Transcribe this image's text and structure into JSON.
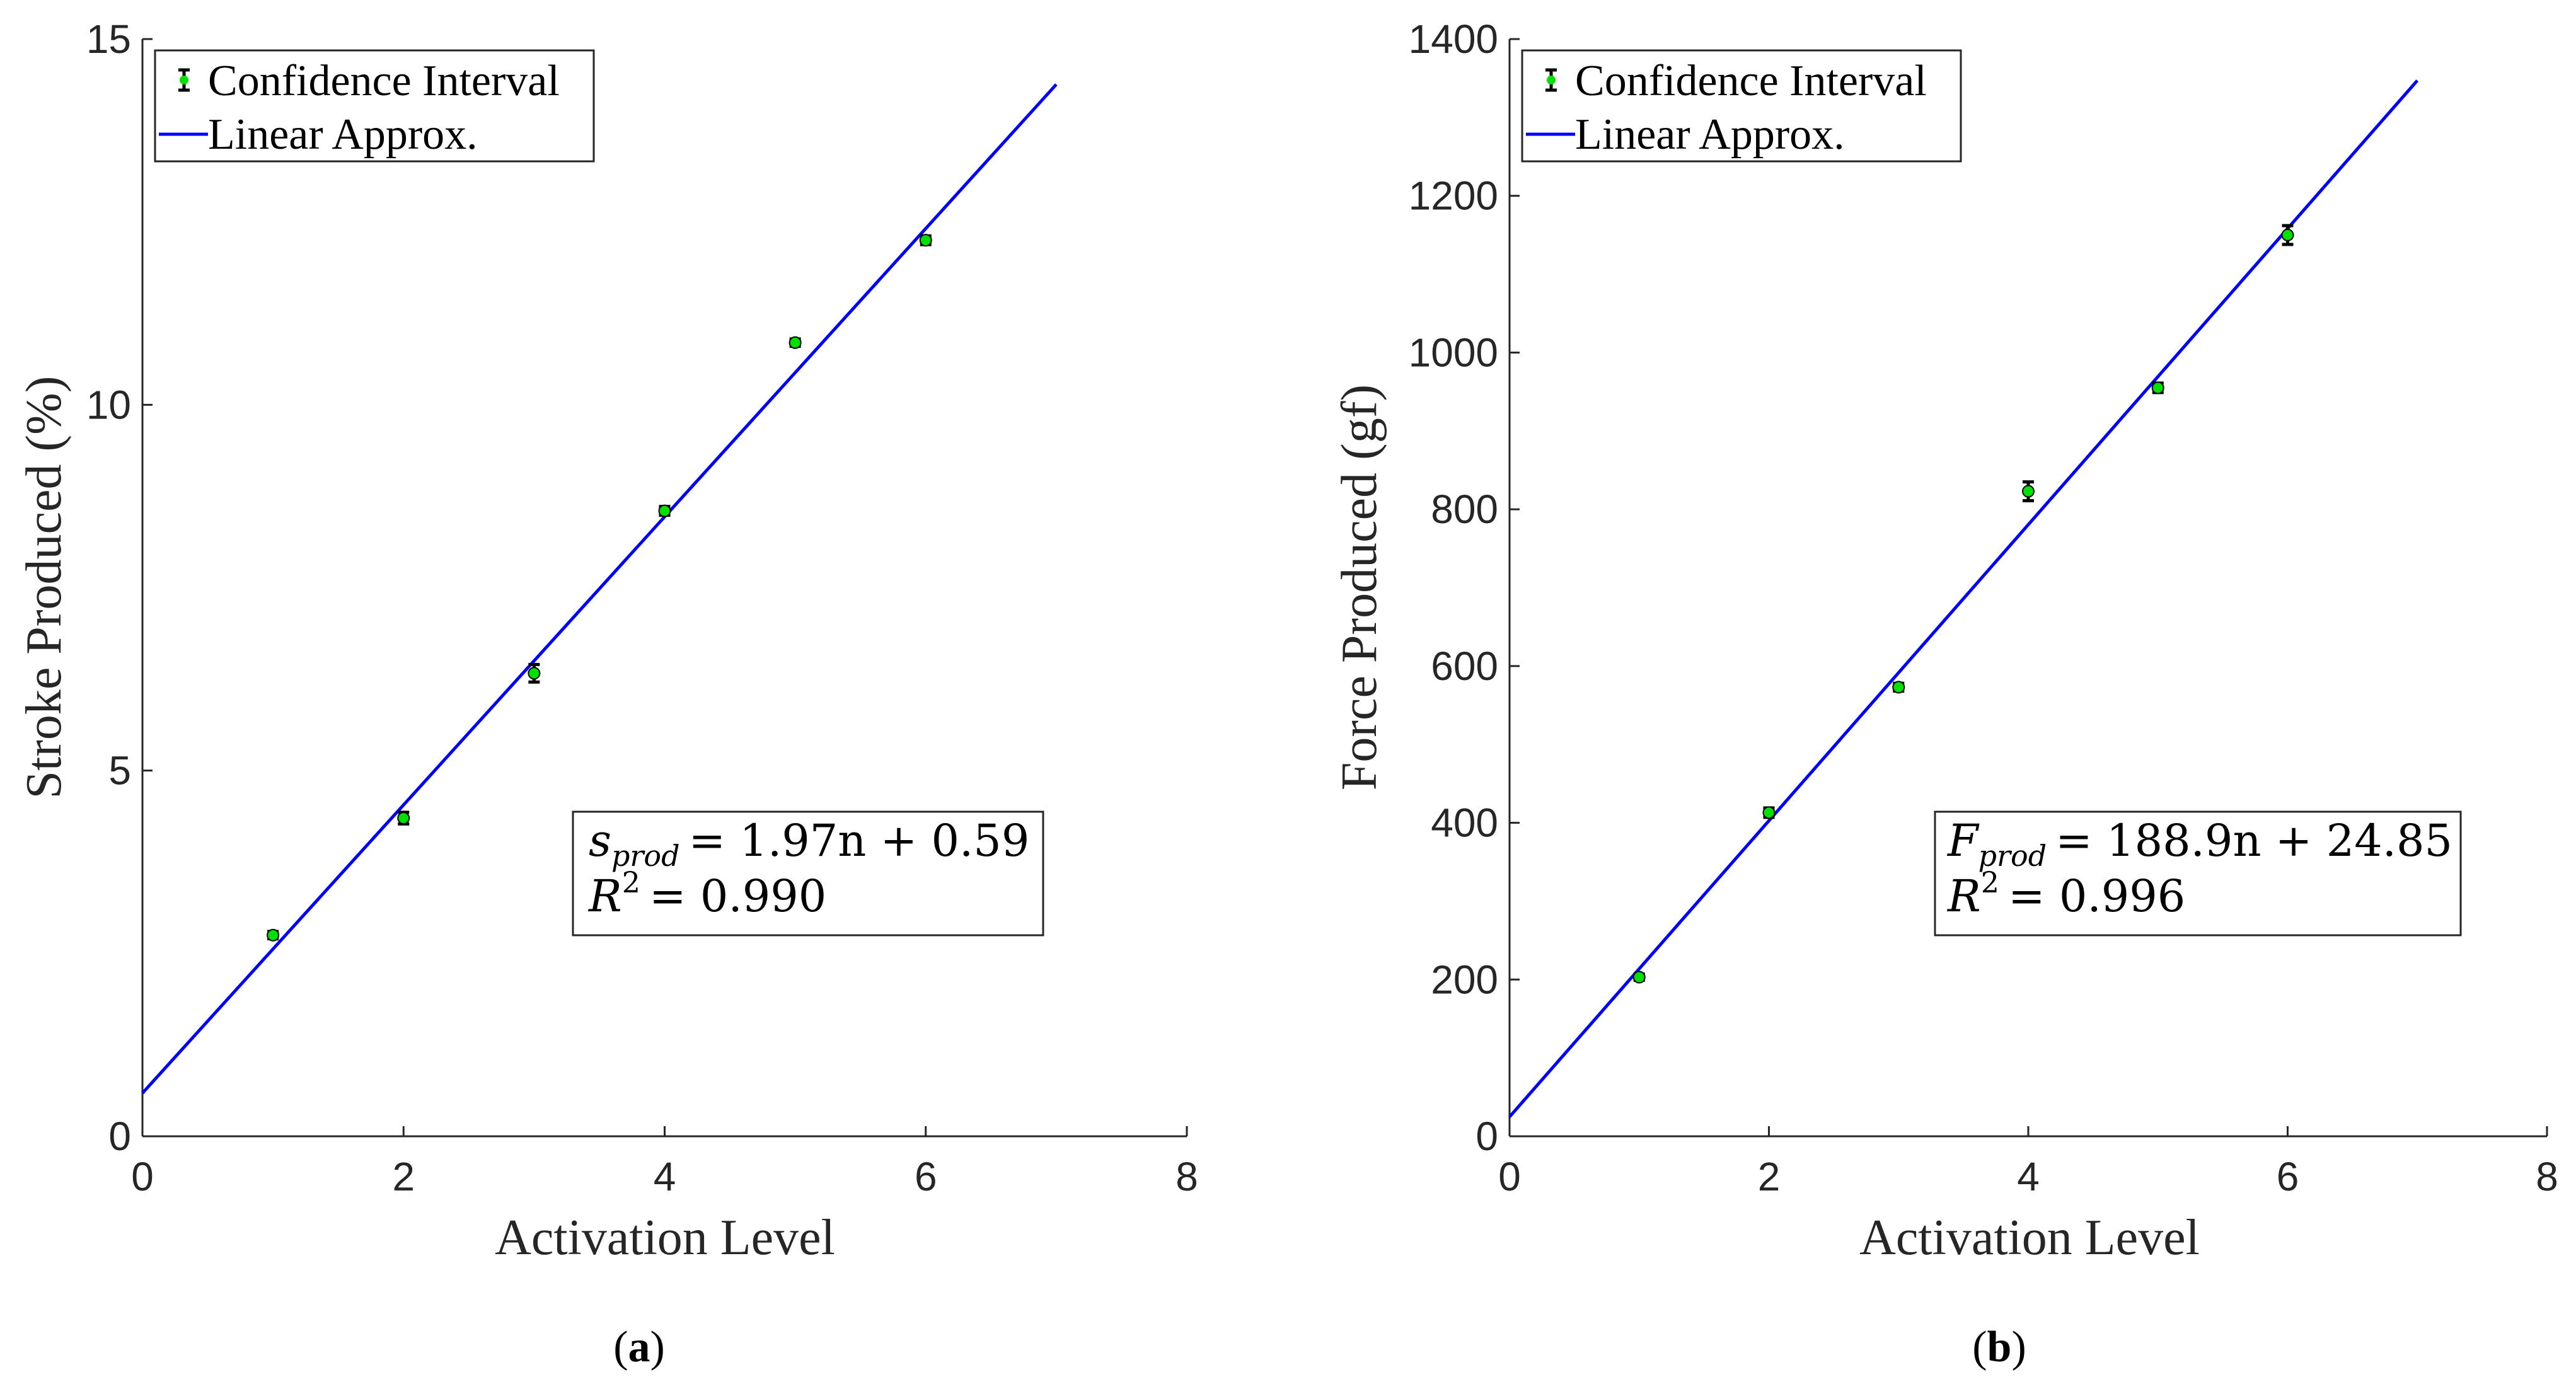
{
  "chart_data": [
    {
      "id": "a",
      "type": "scatter",
      "caption_letter": "a",
      "xlabel": "Activation Level",
      "ylabel": "Stroke Produced (%)",
      "xlim": [
        0,
        8
      ],
      "ylim": [
        0,
        15
      ],
      "xticks": [
        0,
        2,
        4,
        6,
        8
      ],
      "yticks": [
        0,
        5,
        10,
        15
      ],
      "xtick_labels": [
        "0",
        "2",
        "4",
        "6",
        "8"
      ],
      "ytick_labels": [
        "0",
        "5",
        "10",
        "15"
      ],
      "series": [
        {
          "name": "Confidence Interval",
          "kind": "errorbar",
          "x": [
            1,
            2,
            3,
            4,
            5,
            6
          ],
          "y": [
            2.75,
            4.35,
            6.33,
            8.55,
            10.85,
            12.25
          ],
          "err": [
            0.05,
            0.08,
            0.12,
            0.06,
            0.05,
            0.06
          ],
          "color": "#00e000",
          "bar_color": "#000000"
        },
        {
          "name": "Linear Approx.",
          "kind": "line",
          "slope": 1.97,
          "intercept": 0.59,
          "x_range": [
            0,
            7
          ],
          "color": "#0000ff"
        }
      ],
      "legend": [
        "Confidence Interval",
        "Linear Approx."
      ],
      "equation": {
        "var": "s",
        "sub": "prod",
        "rhs": "= 1.97n + 0.59",
        "r2_lhs": "R",
        "r2_exp": "2",
        "r2_rhs": "= 0.990"
      }
    },
    {
      "id": "b",
      "type": "scatter",
      "caption_letter": "b",
      "xlabel": "Activation Level",
      "ylabel": "Force Produced (gf)",
      "xlim": [
        0,
        8
      ],
      "ylim": [
        0,
        1400
      ],
      "xticks": [
        0,
        2,
        4,
        6,
        8
      ],
      "yticks": [
        0,
        200,
        400,
        600,
        800,
        1000,
        1200,
        1400
      ],
      "xtick_labels": [
        "0",
        "2",
        "4",
        "6",
        "8"
      ],
      "ytick_labels": [
        "0",
        "200",
        "400",
        "600",
        "800",
        "1000",
        "1200",
        "1400"
      ],
      "series": [
        {
          "name": "Confidence Interval",
          "kind": "errorbar",
          "x": [
            1,
            2,
            3,
            4,
            5,
            6
          ],
          "y": [
            203,
            413,
            573,
            823,
            955,
            1150
          ],
          "err": [
            4,
            6,
            5,
            12,
            6,
            12
          ],
          "color": "#00e000",
          "bar_color": "#000000"
        },
        {
          "name": "Linear Approx.",
          "kind": "line",
          "slope": 188.9,
          "intercept": 24.85,
          "x_range": [
            0,
            7
          ],
          "color": "#0000ff"
        }
      ],
      "legend": [
        "Confidence Interval",
        "Linear Approx."
      ],
      "equation": {
        "var": "F",
        "sub": "prod",
        "rhs": "= 188.9n + 24.85",
        "r2_lhs": "R",
        "r2_exp": "2",
        "r2_rhs": "= 0.996"
      }
    }
  ]
}
